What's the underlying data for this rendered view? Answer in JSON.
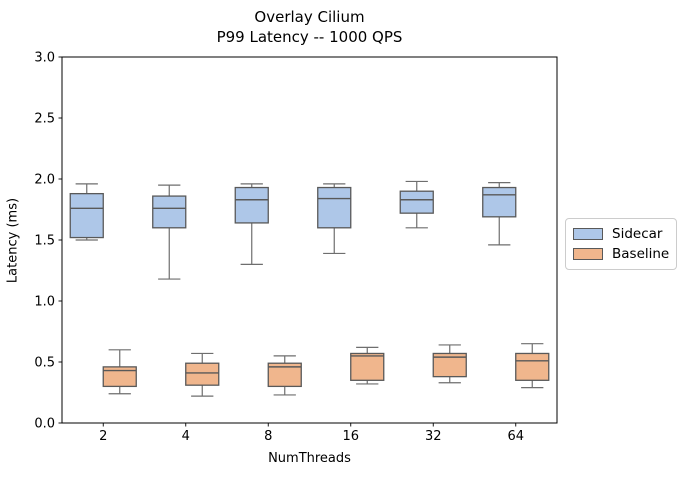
{
  "figure": {
    "background": "#ffffff",
    "spine_color": "#000000",
    "tick_color": "#000000"
  },
  "chart_data": {
    "type": "boxplot",
    "title_line1": "Overlay Cilium",
    "title_line2": "P99 Latency -- 1000 QPS",
    "xlabel": "NumThreads",
    "ylabel": "Latency (ms)",
    "categories": [
      "2",
      "4",
      "8",
      "16",
      "32",
      "64"
    ],
    "ylim": [
      0.0,
      3.0
    ],
    "ytick_step": 0.5,
    "grid": "off",
    "legend_position": "outside-right",
    "edge_color": "#595959",
    "whisker_color": "#6e6e6e",
    "series": [
      {
        "name": "Sidecar",
        "fill": "#aec7e8",
        "boxes": [
          {
            "min": 1.5,
            "q1": 1.52,
            "med": 1.76,
            "q3": 1.88,
            "max": 1.96
          },
          {
            "min": 1.18,
            "q1": 1.6,
            "med": 1.76,
            "q3": 1.86,
            "max": 1.95
          },
          {
            "min": 1.3,
            "q1": 1.64,
            "med": 1.83,
            "q3": 1.93,
            "max": 1.96
          },
          {
            "min": 1.39,
            "q1": 1.6,
            "med": 1.84,
            "q3": 1.93,
            "max": 1.96
          },
          {
            "min": 1.6,
            "q1": 1.72,
            "med": 1.83,
            "q3": 1.9,
            "max": 1.98
          },
          {
            "min": 1.46,
            "q1": 1.69,
            "med": 1.87,
            "q3": 1.93,
            "max": 1.97
          }
        ]
      },
      {
        "name": "Baseline",
        "fill": "#f0b68d",
        "boxes": [
          {
            "min": 0.24,
            "q1": 0.3,
            "med": 0.43,
            "q3": 0.46,
            "max": 0.6
          },
          {
            "min": 0.22,
            "q1": 0.31,
            "med": 0.41,
            "q3": 0.49,
            "max": 0.57
          },
          {
            "min": 0.23,
            "q1": 0.3,
            "med": 0.46,
            "q3": 0.49,
            "max": 0.55
          },
          {
            "min": 0.32,
            "q1": 0.35,
            "med": 0.55,
            "q3": 0.57,
            "max": 0.62
          },
          {
            "min": 0.33,
            "q1": 0.38,
            "med": 0.54,
            "q3": 0.57,
            "max": 0.64
          },
          {
            "min": 0.29,
            "q1": 0.35,
            "med": 0.51,
            "q3": 0.57,
            "max": 0.65
          }
        ]
      }
    ]
  }
}
